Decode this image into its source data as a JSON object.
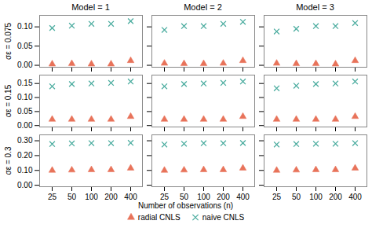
{
  "chart_data": [
    {
      "type": "scatter",
      "title": "Model = 1",
      "ylabel": "σε = 0.075",
      "categories": [
        "25",
        "50",
        "100",
        "200",
        "400"
      ],
      "series": [
        {
          "name": "radial CNLS",
          "color": "#E8735A",
          "marker": "triangle",
          "values": [
            0.003,
            0.004,
            0.003,
            0.003,
            0.012
          ]
        },
        {
          "name": "naive CNLS",
          "color": "#4DADA0",
          "marker": "x",
          "values": [
            0.097,
            0.103,
            0.108,
            0.108,
            0.115
          ]
        }
      ],
      "ylim": [
        -0.005,
        0.13
      ],
      "yticks": [
        {
          "value": 0,
          "label": "0.00"
        },
        0.05,
        {
          "value": 0.1,
          "label": "0.10"
        }
      ],
      "grid": false,
      "tick_labels": "y"
    },
    {
      "type": "scatter",
      "title": "Model = 2",
      "categories": [
        "25",
        "50",
        "100",
        "200",
        "400"
      ],
      "series": [
        {
          "name": "radial CNLS",
          "color": "#E8735A",
          "marker": "triangle",
          "values": [
            0.005,
            0.004,
            0.004,
            0.005,
            0.012
          ]
        },
        {
          "name": "naive CNLS",
          "color": "#4DADA0",
          "marker": "x",
          "values": [
            0.092,
            0.102,
            0.102,
            0.108,
            0.113
          ]
        }
      ],
      "ylim": [
        -0.005,
        0.13
      ],
      "yticks": [
        {
          "value": 0,
          "label": "0.00"
        },
        0.05,
        {
          "value": 0.1,
          "label": "0.10"
        }
      ],
      "grid": false,
      "tick_labels": false
    },
    {
      "type": "scatter",
      "title": "Model = 3",
      "categories": [
        "25",
        "50",
        "100",
        "200",
        "400"
      ],
      "series": [
        {
          "name": "radial CNLS",
          "color": "#E8735A",
          "marker": "triangle",
          "values": [
            0.005,
            0.004,
            0.004,
            0.003,
            0.012
          ]
        },
        {
          "name": "naive CNLS",
          "color": "#4DADA0",
          "marker": "x",
          "values": [
            0.088,
            0.095,
            0.102,
            0.102,
            0.11
          ]
        }
      ],
      "ylim": [
        -0.005,
        0.13
      ],
      "yticks": [
        {
          "value": 0,
          "label": "0.00"
        },
        0.05,
        {
          "value": 0.1,
          "label": "0.10"
        }
      ],
      "grid": false,
      "tick_labels": false
    },
    {
      "type": "scatter",
      "ylabel": "σε = 0.15",
      "categories": [
        "25",
        "50",
        "100",
        "200",
        "400"
      ],
      "series": [
        {
          "name": "radial CNLS",
          "color": "#E8735A",
          "marker": "triangle",
          "values": [
            0.022,
            0.022,
            0.022,
            0.022,
            0.032
          ]
        },
        {
          "name": "naive CNLS",
          "color": "#4DADA0",
          "marker": "x",
          "values": [
            0.14,
            0.148,
            0.15,
            0.152,
            0.157
          ]
        }
      ],
      "ylim": [
        -0.005,
        0.18
      ],
      "yticks": [
        {
          "value": 0,
          "label": "0.00"
        },
        0.05,
        {
          "value": 0.1,
          "label": "0.10"
        },
        0.15
      ],
      "grid": false,
      "tick_labels": "y"
    },
    {
      "type": "scatter",
      "categories": [
        "25",
        "50",
        "100",
        "200",
        "400"
      ],
      "series": [
        {
          "name": "radial CNLS",
          "color": "#E8735A",
          "marker": "triangle",
          "values": [
            0.022,
            0.022,
            0.022,
            0.022,
            0.032
          ]
        },
        {
          "name": "naive CNLS",
          "color": "#4DADA0",
          "marker": "x",
          "values": [
            0.14,
            0.148,
            0.15,
            0.152,
            0.157
          ]
        }
      ],
      "ylim": [
        -0.005,
        0.18
      ],
      "yticks": [
        {
          "value": 0,
          "label": "0.00"
        },
        0.05,
        {
          "value": 0.1,
          "label": "0.10"
        },
        0.15
      ],
      "grid": false,
      "tick_labels": false
    },
    {
      "type": "scatter",
      "categories": [
        "25",
        "50",
        "100",
        "200",
        "400"
      ],
      "series": [
        {
          "name": "radial CNLS",
          "color": "#E8735A",
          "marker": "triangle",
          "values": [
            0.022,
            0.022,
            0.022,
            0.022,
            0.032
          ]
        },
        {
          "name": "naive CNLS",
          "color": "#4DADA0",
          "marker": "x",
          "values": [
            0.133,
            0.142,
            0.148,
            0.15,
            0.157
          ]
        }
      ],
      "ylim": [
        -0.005,
        0.18
      ],
      "yticks": [
        {
          "value": 0,
          "label": "0.00"
        },
        0.05,
        {
          "value": 0.1,
          "label": "0.10"
        },
        0.15
      ],
      "grid": false,
      "tick_labels": false
    },
    {
      "type": "scatter",
      "ylabel": "σε = 0.3",
      "categories": [
        "25",
        "50",
        "100",
        "200",
        "400"
      ],
      "series": [
        {
          "name": "radial CNLS",
          "color": "#E8735A",
          "marker": "triangle",
          "values": [
            0.1,
            0.102,
            0.104,
            0.104,
            0.115
          ]
        },
        {
          "name": "naive CNLS",
          "color": "#4DADA0",
          "marker": "x",
          "values": [
            0.278,
            0.282,
            0.284,
            0.284,
            0.286
          ]
        }
      ],
      "ylim": [
        -0.01,
        0.34
      ],
      "yticks": [
        {
          "value": 0,
          "label": "0.00"
        },
        {
          "value": 0.1,
          "label": "0.10"
        },
        {
          "value": 0.2,
          "label": "0.20"
        },
        {
          "value": 0.3,
          "label": "0.30"
        }
      ],
      "grid": false
    },
    {
      "type": "scatter",
      "xlabel": "Number of observations (n)",
      "categories": [
        "25",
        "50",
        "100",
        "200",
        "400"
      ],
      "series": [
        {
          "name": "radial CNLS",
          "color": "#E8735A",
          "marker": "triangle",
          "values": [
            0.1,
            0.102,
            0.104,
            0.104,
            0.115
          ]
        },
        {
          "name": "naive CNLS",
          "color": "#4DADA0",
          "marker": "x",
          "values": [
            0.275,
            0.28,
            0.283,
            0.283,
            0.285
          ]
        }
      ],
      "ylim": [
        -0.01,
        0.34
      ],
      "yticks": [
        {
          "value": 0,
          "label": "0.00"
        },
        {
          "value": 0.1,
          "label": "0.10"
        },
        {
          "value": 0.2,
          "label": "0.20"
        },
        {
          "value": 0.3,
          "label": "0.30"
        }
      ],
      "grid": false,
      "tick_labels": "x",
      "legend": "bottom"
    },
    {
      "type": "scatter",
      "categories": [
        "25",
        "50",
        "100",
        "200",
        "400"
      ],
      "series": [
        {
          "name": "radial CNLS",
          "color": "#E8735A",
          "marker": "triangle",
          "values": [
            0.1,
            0.102,
            0.104,
            0.104,
            0.115
          ]
        },
        {
          "name": "naive CNLS",
          "color": "#4DADA0",
          "marker": "x",
          "values": [
            0.275,
            0.278,
            0.28,
            0.28,
            0.284
          ]
        }
      ],
      "ylim": [
        -0.01,
        0.34
      ],
      "yticks": [
        {
          "value": 0,
          "label": "0.00"
        },
        {
          "value": 0.1,
          "label": "0.10"
        },
        {
          "value": 0.2,
          "label": "0.20"
        },
        {
          "value": 0.3,
          "label": "0.30"
        }
      ],
      "grid": false,
      "tick_labels": "x"
    }
  ]
}
